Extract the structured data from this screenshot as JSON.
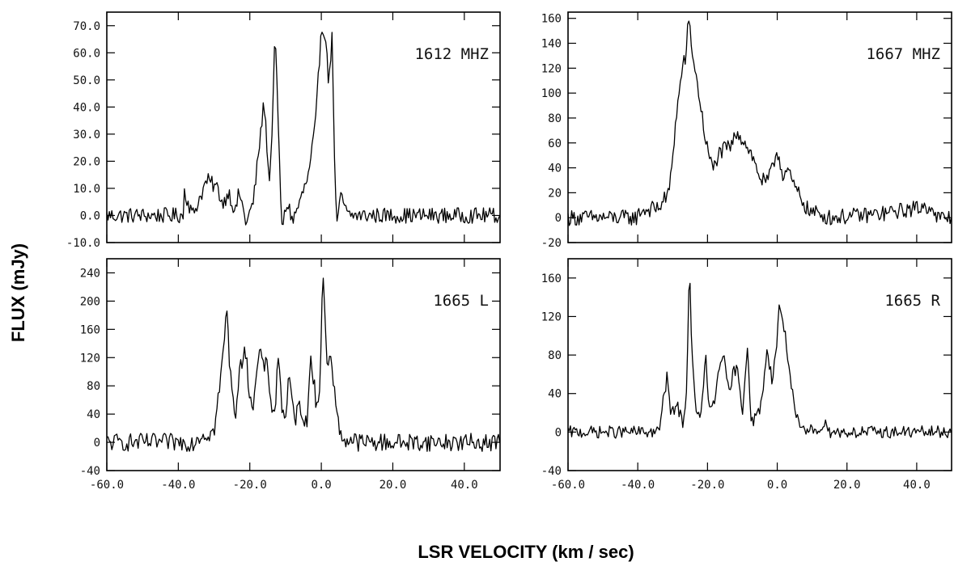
{
  "figure": {
    "xlabel": "LSR   VELOCITY (km / sec)",
    "ylabel": "FLUX  (mJy)"
  },
  "chart_data": [
    {
      "type": "line",
      "title": "1612  MHZ",
      "xlim": [
        -60,
        50
      ],
      "ylim": [
        -10,
        75
      ],
      "xticks": [
        -60,
        -40,
        -20,
        0,
        20,
        40
      ],
      "yticks": [
        -10,
        0,
        10,
        20,
        30,
        40,
        50,
        60,
        70
      ],
      "yticklabels": [
        "-10.0",
        "0.0",
        "10.0",
        "20.0",
        "30.0",
        "40.0",
        "50.0",
        "60.0",
        "70.0"
      ],
      "xticklabels": [],
      "peaks": [
        [
          -38.5,
          10
        ],
        [
          -36,
          0
        ],
        [
          -32,
          13
        ],
        [
          -29,
          10
        ],
        [
          -27.5,
          4
        ],
        [
          -26,
          9
        ],
        [
          -24,
          1
        ],
        [
          -23,
          9
        ],
        [
          -21,
          -3
        ],
        [
          -19,
          5
        ],
        [
          -17,
          30
        ],
        [
          -16,
          42
        ],
        [
          -14.5,
          12
        ],
        [
          -13.5,
          40
        ],
        [
          -13,
          71
        ],
        [
          -12,
          30
        ],
        [
          -11,
          -5
        ],
        [
          -9.5,
          5
        ],
        [
          -8,
          -2
        ],
        [
          -6,
          5
        ],
        [
          -3.5,
          15
        ],
        [
          -1.5,
          35
        ],
        [
          0,
          70
        ],
        [
          1,
          68
        ],
        [
          2,
          50
        ],
        [
          3,
          65
        ],
        [
          4,
          5
        ],
        [
          4.5,
          -3
        ],
        [
          5.5,
          7
        ],
        [
          7,
          2
        ]
      ],
      "noise_level": 1.8
    },
    {
      "type": "line",
      "title": "1667  MHZ",
      "xlim": [
        -60,
        50
      ],
      "ylim": [
        -20,
        165
      ],
      "xticks": [
        -60,
        -40,
        -20,
        0,
        20,
        40
      ],
      "yticks": [
        -20,
        0,
        20,
        40,
        60,
        80,
        100,
        120,
        140,
        160
      ],
      "yticklabels": [
        "-20",
        "0",
        "20",
        "40",
        "60",
        "80",
        "100",
        "120",
        "140",
        "160"
      ],
      "xticklabels": [],
      "peaks": [
        [
          -40,
          5
        ],
        [
          -34,
          8
        ],
        [
          -31,
          20
        ],
        [
          -29,
          80
        ],
        [
          -27,
          125
        ],
        [
          -26,
          130
        ],
        [
          -25.5,
          163
        ],
        [
          -24,
          125
        ],
        [
          -22.5,
          100
        ],
        [
          -21,
          70
        ],
        [
          -20,
          55
        ],
        [
          -18.5,
          38
        ],
        [
          -17,
          50
        ],
        [
          -15,
          55
        ],
        [
          -13,
          58
        ],
        [
          -11.5,
          70
        ],
        [
          -10,
          63
        ],
        [
          -8,
          55
        ],
        [
          -6,
          40
        ],
        [
          -4.5,
          30
        ],
        [
          -3,
          28
        ],
        [
          -1.5,
          38
        ],
        [
          0,
          55
        ],
        [
          1.5,
          35
        ],
        [
          3,
          38
        ],
        [
          4,
          30
        ],
        [
          5.5,
          22
        ],
        [
          7,
          15
        ],
        [
          9,
          5
        ],
        [
          12,
          3
        ],
        [
          15,
          0
        ],
        [
          30,
          3
        ],
        [
          45,
          10
        ]
      ],
      "noise_level": 4
    },
    {
      "type": "line",
      "title": "1665    L",
      "xlim": [
        -60,
        50
      ],
      "ylim": [
        -40,
        260
      ],
      "xticks": [
        -60,
        -40,
        -20,
        0,
        20,
        40
      ],
      "yticks": [
        -40,
        0,
        40,
        80,
        120,
        160,
        200,
        240
      ],
      "yticklabels": [
        "-40",
        "0",
        "40",
        "80",
        "120",
        "160",
        "200",
        "240"
      ],
      "xticklabels": [
        "-60.0",
        "-40.0",
        "-20.0",
        "0.0",
        "20.0",
        "40.0"
      ],
      "peaks": [
        [
          -35,
          8
        ],
        [
          -30,
          15
        ],
        [
          -28,
          95
        ],
        [
          -26.5,
          190
        ],
        [
          -25.5,
          100
        ],
        [
          -24,
          40
        ],
        [
          -23,
          90
        ],
        [
          -21.5,
          140
        ],
        [
          -20,
          70
        ],
        [
          -19,
          50
        ],
        [
          -17.5,
          125
        ],
        [
          -16,
          110
        ],
        [
          -15,
          105
        ],
        [
          -14,
          55
        ],
        [
          -13,
          40
        ],
        [
          -12,
          130
        ],
        [
          -11,
          45
        ],
        [
          -10,
          40
        ],
        [
          -9,
          90
        ],
        [
          -7.5,
          30
        ],
        [
          -6,
          55
        ],
        [
          -4,
          20
        ],
        [
          -3,
          130
        ],
        [
          -1.5,
          60
        ],
        [
          -0.5,
          60
        ],
        [
          0.5,
          250
        ],
        [
          1.5,
          120
        ],
        [
          3,
          110
        ],
        [
          4.5,
          30
        ],
        [
          6,
          5
        ],
        [
          10,
          2
        ]
      ],
      "noise_level": 8
    },
    {
      "type": "line",
      "title": "1665    R",
      "xlim": [
        -60,
        50
      ],
      "ylim": [
        -40,
        180
      ],
      "xticks": [
        -60,
        -40,
        -20,
        0,
        20,
        40
      ],
      "yticks": [
        -40,
        0,
        40,
        80,
        120,
        160
      ],
      "yticklabels": [
        "-40",
        "0",
        "40",
        "80",
        "120",
        "160"
      ],
      "xticklabels": [
        "-60.0",
        "-40.0",
        "-20.0",
        "0.0",
        "20.0",
        "40.0"
      ],
      "peaks": [
        [
          -34,
          0
        ],
        [
          -31.5,
          60
        ],
        [
          -30.5,
          15
        ],
        [
          -29,
          30
        ],
        [
          -27,
          10
        ],
        [
          -26,
          40
        ],
        [
          -25.2,
          178
        ],
        [
          -24.5,
          80
        ],
        [
          -23.5,
          30
        ],
        [
          -22,
          10
        ],
        [
          -20.5,
          80
        ],
        [
          -19.5,
          20
        ],
        [
          -18,
          30
        ],
        [
          -17,
          60
        ],
        [
          -15.5,
          85
        ],
        [
          -14.5,
          50
        ],
        [
          -13.5,
          40
        ],
        [
          -12.5,
          65
        ],
        [
          -11.5,
          65
        ],
        [
          -10,
          20
        ],
        [
          -8.5,
          95
        ],
        [
          -7.5,
          10
        ],
        [
          -6,
          15
        ],
        [
          -4.5,
          30
        ],
        [
          -3,
          85
        ],
        [
          -1.5,
          55
        ],
        [
          0,
          95
        ],
        [
          0.5,
          132
        ],
        [
          1.5,
          120
        ],
        [
          3,
          80
        ],
        [
          5,
          20
        ],
        [
          7,
          0
        ],
        [
          10,
          2
        ],
        [
          15,
          8
        ]
      ],
      "noise_level": 4
    }
  ]
}
